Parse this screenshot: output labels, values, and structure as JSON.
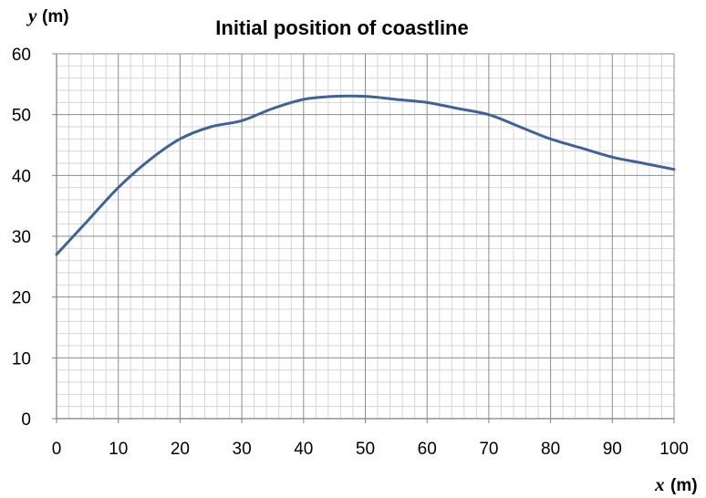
{
  "chart_data": {
    "type": "line",
    "title": "Initial position of coastline",
    "xlabel_var": "x",
    "xlabel_unit": "(m)",
    "ylabel_var": "y",
    "ylabel_unit": "(m)",
    "xlim": [
      0,
      100
    ],
    "ylim": [
      0,
      60
    ],
    "x_ticks": [
      0,
      10,
      20,
      30,
      40,
      50,
      60,
      70,
      80,
      90,
      100
    ],
    "y_ticks": [
      0,
      10,
      20,
      30,
      40,
      50,
      60
    ],
    "x_tick_labels": [
      "0",
      "10",
      "20",
      "30",
      "40",
      "50",
      "60",
      "70",
      "80",
      "90",
      "100"
    ],
    "y_tick_labels": [
      "0",
      "10",
      "20",
      "30",
      "40",
      "50",
      "60"
    ],
    "grid": true,
    "minor_grid_step": 2,
    "series": [
      {
        "color": "#3f6399",
        "x": [
          0,
          5,
          10,
          15,
          20,
          25,
          30,
          35,
          40,
          45,
          50,
          55,
          60,
          65,
          70,
          75,
          80,
          85,
          90,
          95,
          100
        ],
        "y": [
          27,
          32.5,
          38,
          42.5,
          46,
          48,
          49,
          51,
          52.5,
          53,
          53,
          52.5,
          52,
          51,
          50,
          48,
          46,
          44.5,
          43,
          42,
          41
        ]
      }
    ]
  }
}
